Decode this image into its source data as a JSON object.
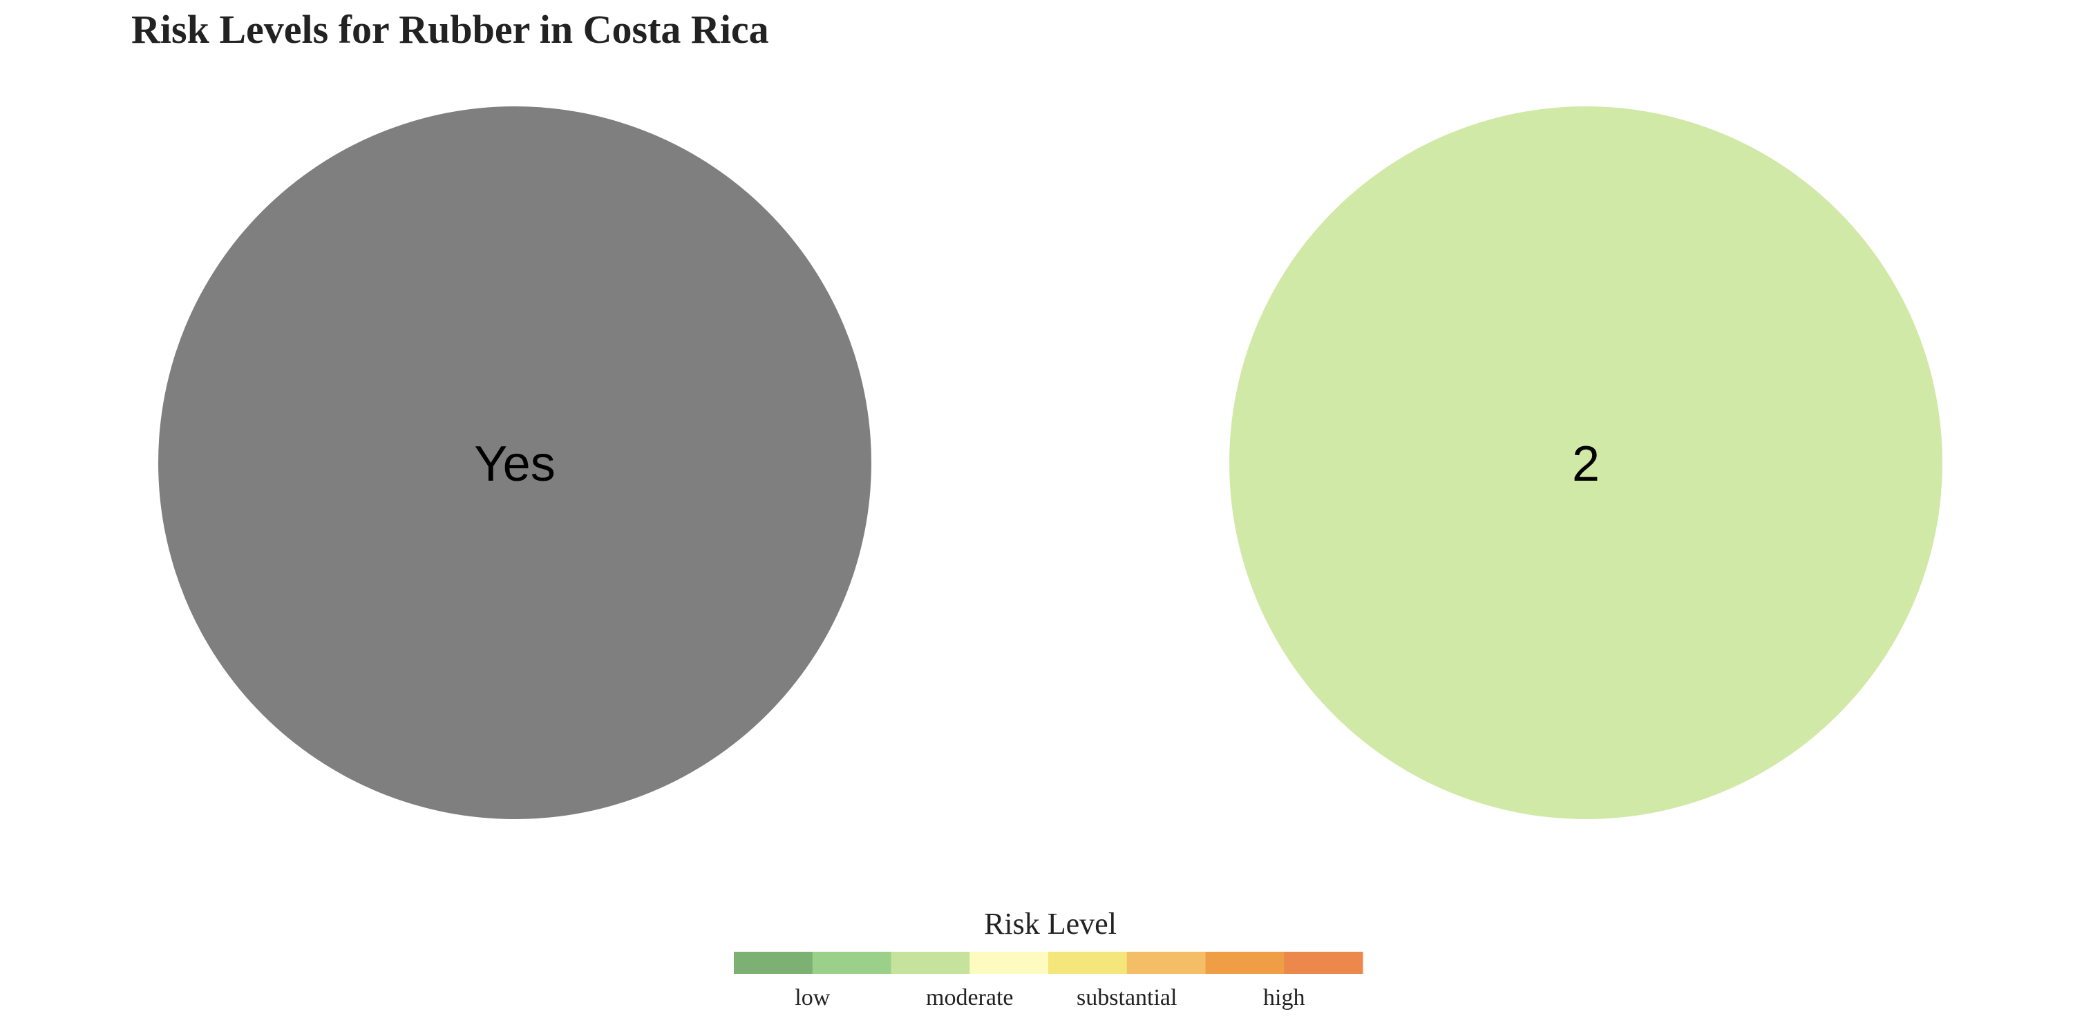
{
  "chart_data": {
    "type": "pie",
    "title": "Risk Levels for Rubber in Costa Rica",
    "panels": [
      {
        "label": "Yes",
        "color": "#7f7f7f"
      },
      {
        "label": "2",
        "color": "#d1e9a6"
      }
    ],
    "legend": {
      "title": "Risk Level",
      "placement": "bottom-center",
      "colors": [
        "#7db174",
        "#9bd08b",
        "#c5e39c",
        "#fdfbc0",
        "#f4e67a",
        "#f4be66",
        "#f09e45",
        "#ec884b"
      ],
      "tick_labels": [
        "low",
        "moderate",
        "substantial",
        "high"
      ]
    },
    "grid": false
  }
}
